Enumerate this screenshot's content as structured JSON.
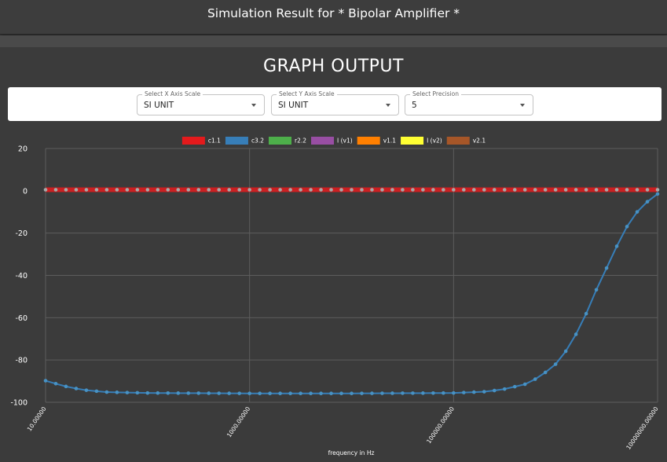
{
  "header": {
    "title": "Simulation Result for * Bipolar Amplifier *"
  },
  "graph_title": "GRAPH OUTPUT",
  "selects": [
    {
      "label": "Select X Axis Scale",
      "value": "SI UNIT"
    },
    {
      "label": "Select Y Axis Scale",
      "value": "SI UNIT"
    },
    {
      "label": "Select Precision",
      "value": "5"
    }
  ],
  "chart_data": {
    "type": "line",
    "title": "",
    "xlabel": "frequency in Hz",
    "ylabel": "",
    "x_scale": "log",
    "xlim": [
      10,
      10000000
    ],
    "ylim": [
      -100,
      20
    ],
    "x_ticks": [
      10,
      1000,
      100000,
      10000000
    ],
    "x_tick_labels": [
      "10.00000",
      "1000.00000",
      "100000.00000",
      "10000000.00000"
    ],
    "y_ticks": [
      20,
      0,
      -20,
      -40,
      -60,
      -80,
      -100
    ],
    "grid": true,
    "legend_position": "top",
    "legend": [
      {
        "name": "c1.1",
        "color": "#e41a1c"
      },
      {
        "name": "c3.2",
        "color": "#377eb8"
      },
      {
        "name": "r2.2",
        "color": "#4daf4a"
      },
      {
        "name": "I (v1)",
        "color": "#984ea3"
      },
      {
        "name": "v1.1",
        "color": "#ff7f00"
      },
      {
        "name": "I (v2)",
        "color": "#ffff33"
      },
      {
        "name": "v2.1",
        "color": "#a65628"
      }
    ],
    "points_per_series": 61,
    "series": [
      {
        "name": "c1.1",
        "color": "#e41a1c",
        "marker_color": "#a8a8a8",
        "x": [
          10,
          10000000
        ],
        "y": [
          0.5,
          0.5
        ]
      },
      {
        "name": "c3.2",
        "color": "#377eb8",
        "marker_color": "#4792c4",
        "x": [
          10,
          12.6,
          15.8,
          20,
          25,
          40,
          100,
          1000,
          10000,
          100000,
          200000,
          300000,
          500000,
          700000,
          1000000,
          1300000,
          1600000,
          2000000,
          2500000,
          3200000,
          4000000,
          5000000,
          6300000,
          8000000,
          10000000
        ],
        "y": [
          -89.8,
          -91.2,
          -92.5,
          -93.5,
          -94.3,
          -95.2,
          -95.6,
          -95.8,
          -95.8,
          -95.6,
          -95.0,
          -94.0,
          -91.5,
          -88.0,
          -82.0,
          -75.0,
          -67.5,
          -58.0,
          -47.0,
          -36.0,
          -26.0,
          -17.0,
          -10.0,
          -5.0,
          -1.5
        ]
      }
    ]
  }
}
